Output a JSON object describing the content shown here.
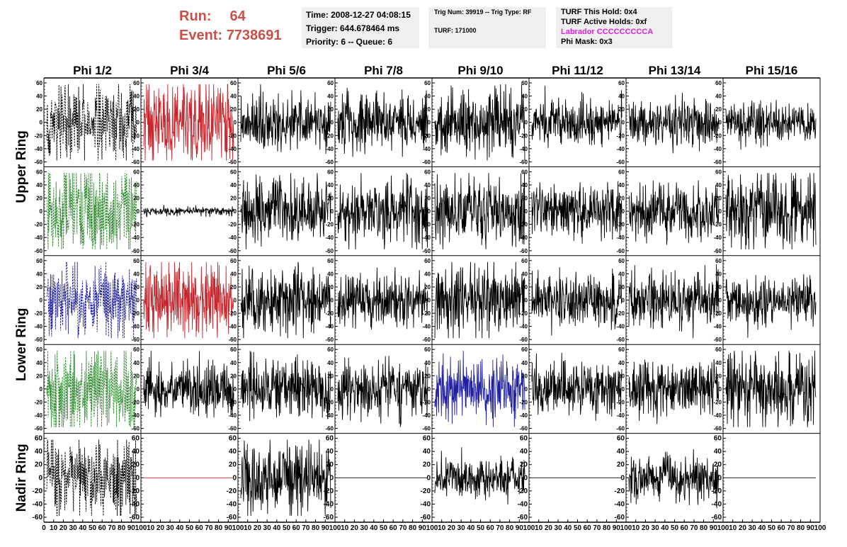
{
  "header": {
    "run_label": "Run:",
    "run_value": "64",
    "event_label": "Event:",
    "event_value": "7738691",
    "box1": {
      "time": "Time: 2008-12-27 04:08:15",
      "trigger": "Trigger: 644.678464 ms",
      "priority": "Priority: 6 -- Queue: 6"
    },
    "box2": {
      "trig": "Trig Num: 39919 -- Trig Type: RF",
      "turf": "TURF: 171000"
    },
    "box3": {
      "hold": "TURF This Hold: 0x4",
      "active": "TURF Active Holds: 0xf",
      "labrador": "Labrador CCCCCCCCCA",
      "phimask": "Phi Mask: 0x3"
    }
  },
  "colors": {
    "black": "#000000",
    "red": "#c8272d",
    "green": "#2e8b2e",
    "blue": "#2020a0",
    "header_red": "#c9504a",
    "magenta": "#e020e0",
    "box_bg": "#efefef"
  },
  "chart_data": {
    "type": "line",
    "columns": [
      "Phi 1/2",
      "Phi 3/4",
      "Phi 5/6",
      "Phi 7/8",
      "Phi 9/10",
      "Phi 11/12",
      "Phi 13/14",
      "Phi 15/16"
    ],
    "ring_labels": [
      {
        "text": "Upper Ring",
        "rows": [
          0,
          1
        ]
      },
      {
        "text": "Lower Ring",
        "rows": [
          2,
          3
        ]
      },
      {
        "text": "Nadir Ring",
        "rows": [
          4,
          4
        ]
      }
    ],
    "ylim": [
      -60,
      60
    ],
    "yticks": [
      60,
      40,
      20,
      0,
      -20,
      -40,
      -60
    ],
    "xlim": [
      0,
      100
    ],
    "xticks": [
      0,
      10,
      20,
      30,
      40,
      50,
      60,
      70,
      80,
      90,
      100
    ],
    "panels": [
      [
        {
          "color": "black",
          "style": "dashed",
          "amp": 42,
          "seed": 11
        },
        {
          "color": "red",
          "style": "solid",
          "amp": 44,
          "seed": 12
        },
        {
          "color": "black",
          "style": "solid",
          "amp": 30,
          "seed": 13
        },
        {
          "color": "black",
          "style": "solid",
          "amp": 32,
          "seed": 14
        },
        {
          "color": "black",
          "style": "solid",
          "amp": 36,
          "seed": 15
        },
        {
          "color": "black",
          "style": "solid",
          "amp": 24,
          "seed": 16
        },
        {
          "color": "black",
          "style": "solid",
          "amp": 26,
          "seed": 17
        },
        {
          "color": "black",
          "style": "solid",
          "amp": 22,
          "seed": 18
        }
      ],
      [
        {
          "color": "green",
          "style": "dashed",
          "amp": 52,
          "seed": 21
        },
        {
          "color": "black",
          "style": "solid",
          "amp": 5,
          "seed": 22
        },
        {
          "color": "black",
          "style": "solid",
          "amp": 34,
          "seed": 23
        },
        {
          "color": "black",
          "style": "solid",
          "amp": 38,
          "seed": 24
        },
        {
          "color": "black",
          "style": "solid",
          "amp": 38,
          "seed": 25
        },
        {
          "color": "black",
          "style": "solid",
          "amp": 30,
          "seed": 26
        },
        {
          "color": "black",
          "style": "solid",
          "amp": 30,
          "seed": 27
        },
        {
          "color": "black",
          "style": "solid",
          "amp": 40,
          "seed": 28
        }
      ],
      [
        {
          "color": "blue",
          "style": "dashed",
          "amp": 38,
          "seed": 31
        },
        {
          "color": "red",
          "style": "solid",
          "amp": 44,
          "seed": 32
        },
        {
          "color": "black",
          "style": "solid",
          "amp": 36,
          "seed": 33
        },
        {
          "color": "black",
          "style": "solid",
          "amp": 28,
          "seed": 34
        },
        {
          "color": "black",
          "style": "solid",
          "amp": 40,
          "seed": 35
        },
        {
          "color": "black",
          "style": "solid",
          "amp": 30,
          "seed": 36
        },
        {
          "color": "black",
          "style": "solid",
          "amp": 30,
          "seed": 37
        },
        {
          "color": "black",
          "style": "solid",
          "amp": 26,
          "seed": 38
        }
      ],
      [
        {
          "color": "green",
          "style": "dashed",
          "amp": 48,
          "seed": 41
        },
        {
          "color": "black",
          "style": "solid",
          "amp": 30,
          "seed": 42
        },
        {
          "color": "black",
          "style": "solid",
          "amp": 34,
          "seed": 43
        },
        {
          "color": "black",
          "style": "solid",
          "amp": 30,
          "seed": 44
        },
        {
          "color": "blue",
          "style": "solid",
          "amp": 34,
          "seed": 45
        },
        {
          "color": "black",
          "style": "solid",
          "amp": 28,
          "seed": 46
        },
        {
          "color": "black",
          "style": "solid",
          "amp": 30,
          "seed": 47
        },
        {
          "color": "black",
          "style": "solid",
          "amp": 40,
          "seed": 48
        }
      ],
      [
        {
          "color": "black",
          "style": "dashed",
          "amp": 42,
          "seed": 51
        },
        {
          "color": "red",
          "style": "solid",
          "amp": 0,
          "seed": 52
        },
        {
          "color": "black",
          "style": "solid",
          "amp": 42,
          "seed": 53
        },
        {
          "color": "black",
          "style": "solid",
          "amp": 0,
          "seed": 54
        },
        {
          "color": "black",
          "style": "solid",
          "amp": 22,
          "seed": 55
        },
        {
          "color": "black",
          "style": "solid",
          "amp": 0,
          "seed": 56
        },
        {
          "color": "black",
          "style": "solid",
          "amp": 26,
          "seed": 57
        },
        {
          "color": "black",
          "style": "solid",
          "amp": 0,
          "seed": 58
        }
      ]
    ]
  }
}
